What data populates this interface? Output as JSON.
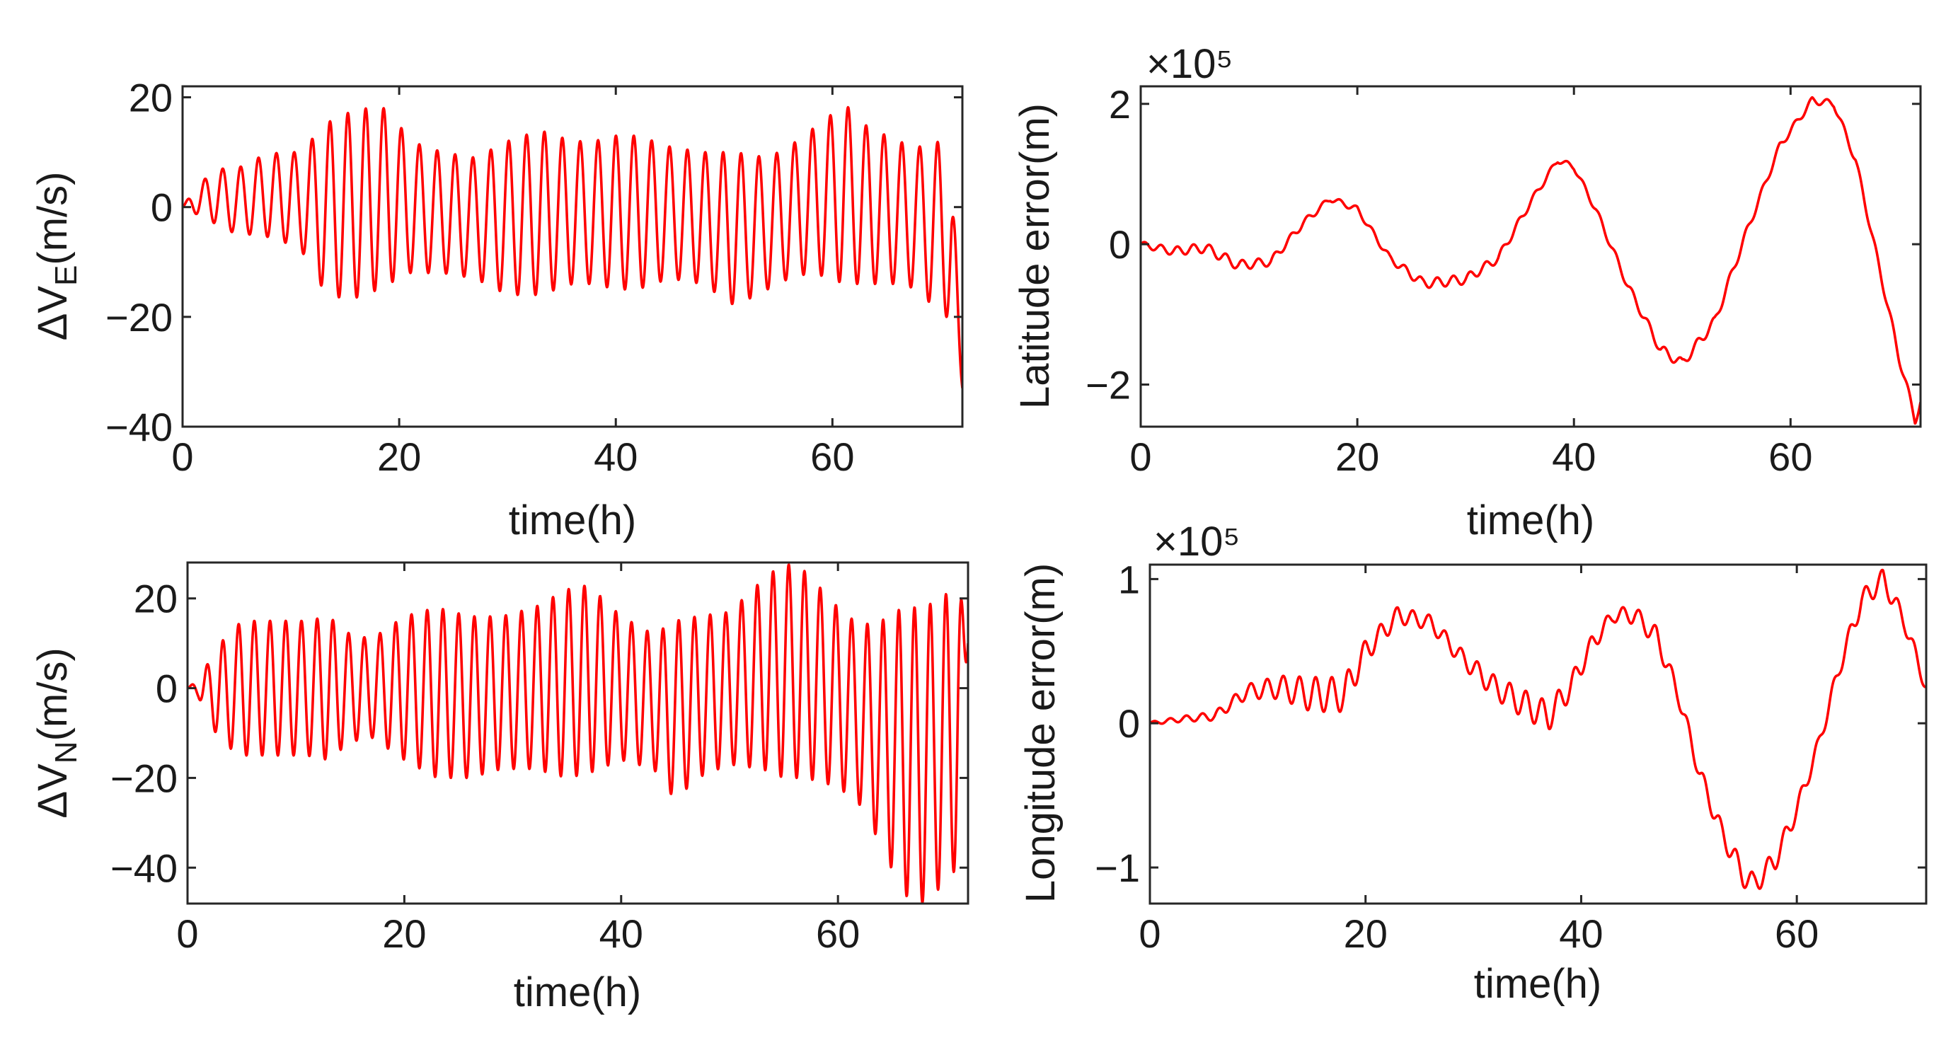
{
  "chart_data": [
    {
      "id": "dve",
      "type": "line",
      "xlabel": "time(h)",
      "ylabel": {
        "main": "ΔV",
        "subscript": "E",
        "unit": "(m/s)"
      },
      "exponent_label": "",
      "xlim": [
        0,
        72
      ],
      "ylim": [
        -40,
        22
      ],
      "xticks": [
        0,
        20,
        40,
        60
      ],
      "xtick_labels": [
        "0",
        "20",
        "40",
        "60"
      ],
      "yticks": [
        -40,
        -20,
        0,
        20
      ],
      "ytick_labels": [
        "−40",
        "−20",
        "0",
        "20"
      ],
      "series": [
        {
          "name": "ΔV_E",
          "color": "#ff0000",
          "x": [
            0,
            1,
            3,
            5,
            7,
            9,
            11,
            13,
            15,
            17,
            19,
            21,
            24,
            27,
            30,
            33,
            36,
            38,
            40,
            42,
            45,
            48,
            51,
            54,
            56,
            58,
            60,
            61,
            62,
            64,
            66,
            68,
            70,
            71,
            72
          ],
          "y": [
            0,
            1,
            2,
            1,
            2,
            2,
            1,
            0,
            0,
            1,
            2,
            0,
            -1,
            -2,
            -2,
            -1,
            -1,
            -1,
            -1,
            -1,
            -1,
            -2,
            -4,
            -3,
            -1,
            1,
            2,
            3,
            1,
            0,
            -1,
            -2,
            -4,
            -6,
            -33
          ],
          "amp": [
            0,
            2,
            5,
            6,
            7,
            8,
            9,
            15,
            17,
            17,
            16,
            12,
            11,
            11,
            14,
            15,
            13,
            13,
            14,
            14,
            12,
            12,
            14,
            12,
            12,
            13,
            15,
            17,
            15,
            14,
            13,
            13,
            16,
            14,
            0
          ],
          "period_h": 1.65
        }
      ]
    },
    {
      "id": "lat",
      "type": "line",
      "xlabel": "time(h)",
      "ylabel": {
        "main": "Latitude error(m)",
        "subscript": "",
        "unit": ""
      },
      "exponent_label": "×10⁵",
      "xlim": [
        0,
        72
      ],
      "ylim": [
        -2.6,
        2.25
      ],
      "xticks": [
        0,
        20,
        40,
        60
      ],
      "xtick_labels": [
        "0",
        "20",
        "40",
        "60"
      ],
      "yticks": [
        -2,
        0,
        2
      ],
      "ytick_labels": [
        "−2",
        "0",
        "2"
      ],
      "series": [
        {
          "name": "Latitude error (×10^5 m)",
          "color": "#ff0000",
          "x": [
            0,
            3,
            6,
            9,
            12,
            15,
            17.5,
            20,
            23,
            26,
            27,
            30,
            33,
            36,
            38.5,
            40,
            42,
            45,
            48,
            50,
            53,
            56,
            59,
            62,
            64,
            66,
            68,
            70,
            71.5,
            72
          ],
          "y": [
            0,
            -0.1,
            -0.05,
            -0.3,
            -0.25,
            0.3,
            0.65,
            0.5,
            -0.2,
            -0.55,
            -0.55,
            -0.5,
            -0.2,
            0.6,
            1.2,
            1.1,
            0.5,
            -0.6,
            -1.5,
            -1.7,
            -1.1,
            0.2,
            1.4,
            2.05,
            2.0,
            1.2,
            -0.2,
            -1.6,
            -2.5,
            -2.25
          ],
          "amp": [
            0.04,
            0.06,
            0.07,
            0.07,
            0.06,
            0.05,
            0.04,
            0.04,
            0.05,
            0.07,
            0.07,
            0.07,
            0.06,
            0.05,
            0.04,
            0.04,
            0.05,
            0.06,
            0.07,
            0.07,
            0.07,
            0.06,
            0.05,
            0.05,
            0.05,
            0.06,
            0.06,
            0.07,
            0.07,
            0.07
          ],
          "period_h": 1.5
        }
      ]
    },
    {
      "id": "dvn",
      "type": "line",
      "xlabel": "time(h)",
      "ylabel": {
        "main": "ΔV",
        "subscript": "N",
        "unit": "(m/s)"
      },
      "exponent_label": "",
      "xlim": [
        0,
        72
      ],
      "ylim": [
        -48,
        28
      ],
      "xticks": [
        0,
        20,
        40,
        60
      ],
      "xtick_labels": [
        "0",
        "20",
        "40",
        "60"
      ],
      "yticks": [
        -40,
        -20,
        0,
        20
      ],
      "ytick_labels": [
        "−40",
        "−20",
        "0",
        "20"
      ],
      "series": [
        {
          "name": "ΔV_N",
          "color": "#ff0000",
          "x": [
            0,
            1,
            3,
            5,
            8,
            11,
            13,
            15,
            17,
            20,
            23,
            26,
            29,
            32,
            35,
            37,
            40,
            43,
            45,
            47,
            50,
            53,
            55,
            57,
            60,
            62,
            64,
            66,
            68,
            70,
            71,
            72
          ],
          "y": [
            0,
            0,
            -1,
            0,
            0,
            0,
            0,
            0,
            0,
            0,
            -1,
            -2,
            -1,
            0,
            1,
            2,
            0,
            -3,
            -5,
            -2,
            0,
            3,
            4,
            3,
            -2,
            -6,
            -10,
            -14,
            -15,
            -11,
            -7,
            10
          ],
          "amp": [
            0,
            2,
            11,
            15,
            15,
            15,
            16,
            12,
            11,
            16,
            19,
            18,
            17,
            18,
            21,
            21,
            16,
            15,
            20,
            18,
            17,
            21,
            24,
            23,
            20,
            20,
            25,
            32,
            33,
            32,
            33,
            0
          ],
          "period_h": 1.45
        }
      ]
    },
    {
      "id": "lon",
      "type": "line",
      "xlabel": "time(h)",
      "ylabel": {
        "main": "Longitude error(m)",
        "subscript": "",
        "unit": ""
      },
      "exponent_label": "×10⁵",
      "xlim": [
        0,
        72
      ],
      "ylim": [
        -1.25,
        1.1
      ],
      "xticks": [
        0,
        20,
        40,
        60
      ],
      "xtick_labels": [
        "0",
        "20",
        "40",
        "60"
      ],
      "yticks": [
        -1,
        0,
        1
      ],
      "ytick_labels": [
        "−1",
        "0",
        "1"
      ],
      "series": [
        {
          "name": "Longitude error (×10^5 m)",
          "color": "#ff0000",
          "x": [
            0,
            3,
            6,
            9,
            12,
            15,
            18,
            20,
            23,
            26,
            29,
            32,
            35,
            37,
            39,
            41,
            43,
            45,
            47,
            49,
            51,
            53,
            55,
            56,
            58,
            60,
            62,
            64,
            66,
            68,
            70,
            72
          ],
          "y": [
            0,
            0.03,
            0.05,
            0.22,
            0.25,
            0.2,
            0.2,
            0.5,
            0.75,
            0.7,
            0.45,
            0.25,
            0.12,
            0.05,
            0.25,
            0.55,
            0.75,
            0.75,
            0.6,
            0.2,
            -0.35,
            -0.75,
            -1.05,
            -1.12,
            -0.95,
            -0.6,
            -0.15,
            0.4,
            0.85,
            1.0,
            0.7,
            0.25
          ],
          "amp": [
            0.01,
            0.02,
            0.03,
            0.05,
            0.08,
            0.12,
            0.12,
            0.08,
            0.06,
            0.05,
            0.06,
            0.08,
            0.1,
            0.1,
            0.08,
            0.06,
            0.05,
            0.06,
            0.07,
            0.06,
            0.06,
            0.07,
            0.08,
            0.08,
            0.07,
            0.06,
            0.05,
            0.06,
            0.07,
            0.07,
            0.06,
            0.05
          ],
          "period_h": 1.5
        }
      ]
    }
  ]
}
